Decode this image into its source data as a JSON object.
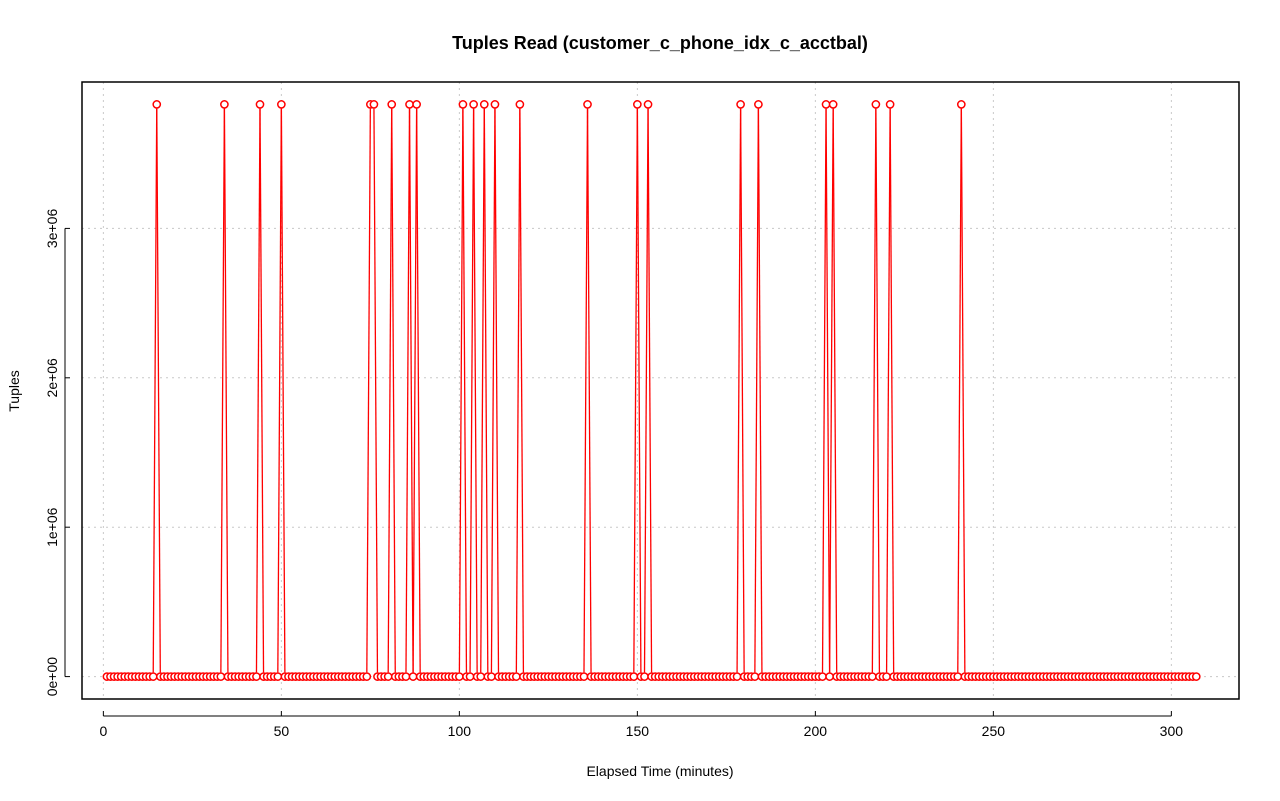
{
  "chart_data": {
    "type": "line",
    "title": "Tuples Read (customer_c_phone_idx_c_acctbal)",
    "xlabel": "Elapsed Time (minutes)",
    "ylabel": "Tuples",
    "xlim": [
      -6,
      319
    ],
    "ylim": [
      -150000,
      3980000
    ],
    "xticks": [
      0,
      50,
      100,
      150,
      200,
      250,
      300
    ],
    "xtick_labels": [
      "0",
      "50",
      "100",
      "150",
      "200",
      "250",
      "300"
    ],
    "yticks": [
      0,
      1000000,
      2000000,
      3000000
    ],
    "ytick_labels": [
      "0e+00",
      "1e+06",
      "2e+06",
      "3e+06"
    ],
    "grid": true,
    "marker": "open-circle",
    "color": "#ff0000",
    "x_start": 1,
    "x_end": 307,
    "baseline_value": 0,
    "peak_value": 3830000,
    "peak_x": [
      15,
      34,
      44,
      50,
      75,
      76,
      81,
      86,
      88,
      101,
      104,
      107,
      110,
      117,
      136,
      150,
      153,
      179,
      184,
      203,
      205,
      217,
      221,
      241
    ]
  }
}
